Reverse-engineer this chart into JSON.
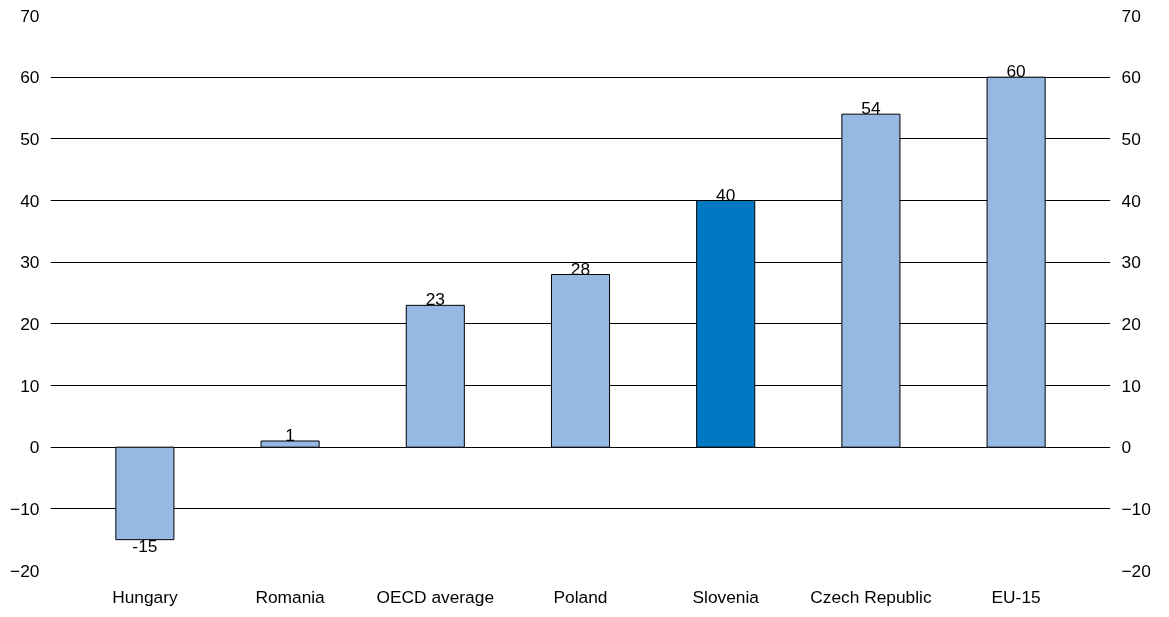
{
  "chart_data": {
    "type": "bar",
    "categories": [
      "Hungary",
      "Romania",
      "OECD average",
      "Poland",
      "Slovenia",
      "Czech Republic",
      "EU-15"
    ],
    "values": [
      -15,
      1,
      23,
      28,
      40,
      54,
      60
    ],
    "colors": [
      "#95b9e2",
      "#95b9e2",
      "#95b9e2",
      "#95b9e2",
      "#0078c2",
      "#95b9e2",
      "#95b9e2"
    ],
    "ylim": [
      -20,
      70
    ],
    "yticks": [
      -20,
      -10,
      0,
      10,
      20,
      30,
      40,
      50,
      60,
      70
    ],
    "y2lim": [
      -20,
      70
    ],
    "y2ticks": [
      -20,
      -10,
      0,
      10,
      20,
      30,
      40,
      50,
      60,
      70
    ],
    "grid": "y",
    "data_labels": true
  }
}
